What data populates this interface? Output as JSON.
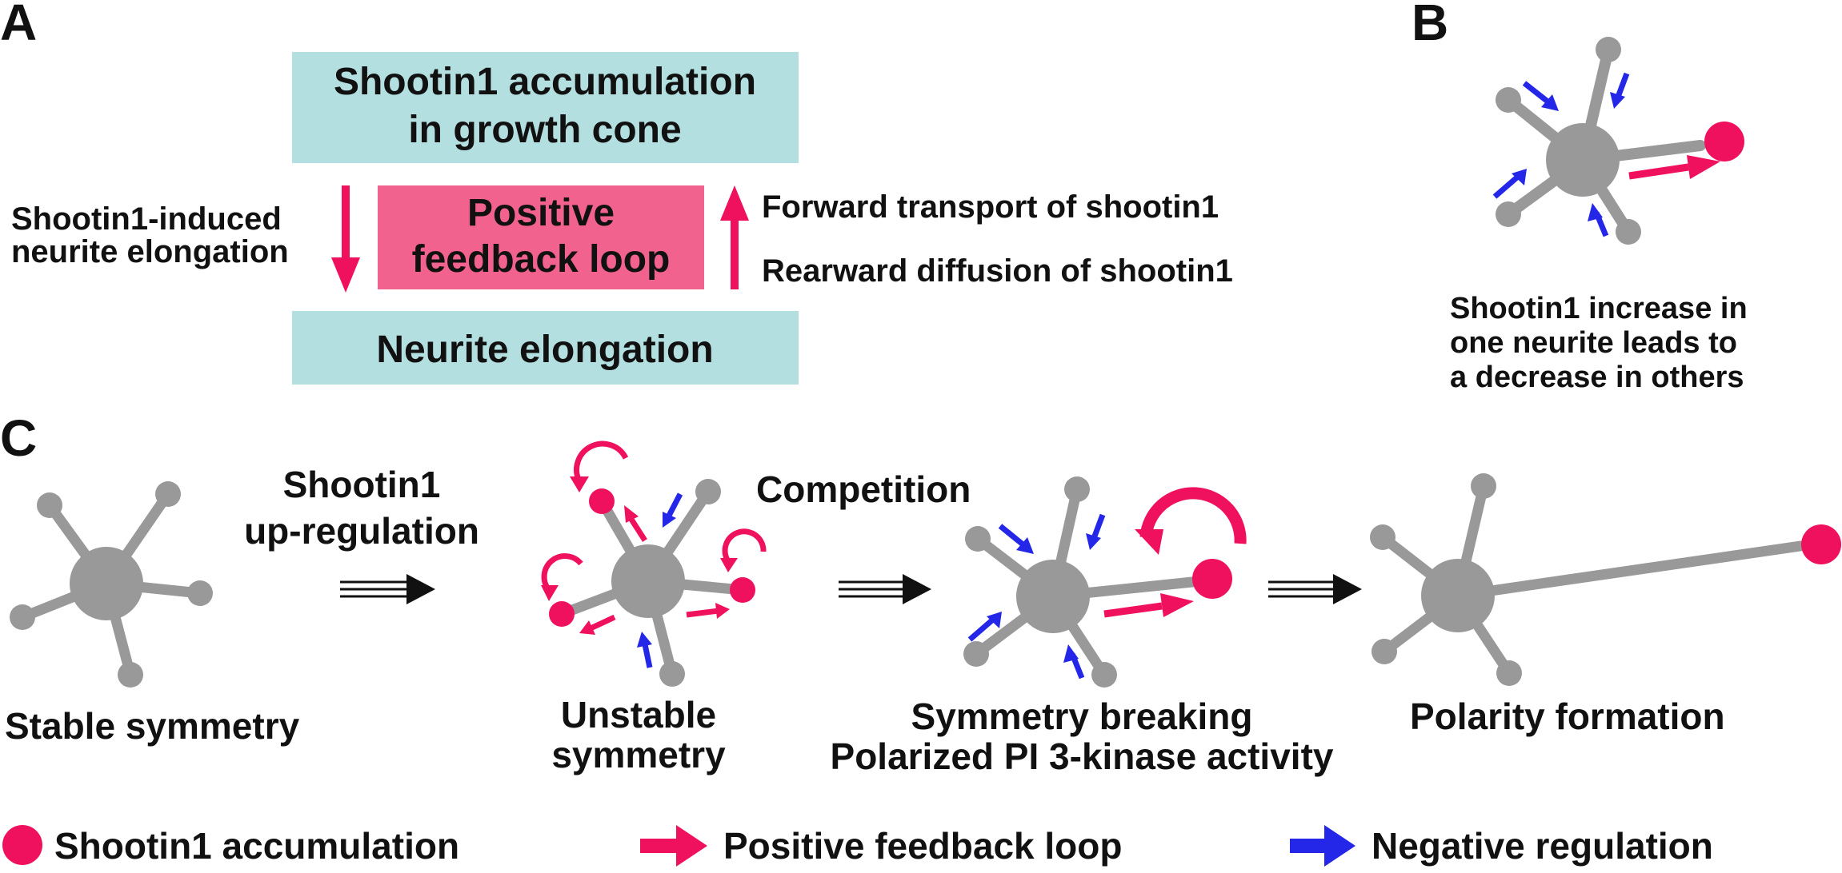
{
  "panels": {
    "a": "A",
    "b": "B",
    "c": "C"
  },
  "panel_a": {
    "top_box": [
      "Shootin1 accumulation",
      "in growth cone"
    ],
    "feedback_box": [
      "Positive",
      "feedback loop"
    ],
    "bottom_box": "Neurite elongation",
    "left_label": [
      "Shootin1-induced",
      "neurite elongation"
    ],
    "right_label_1": "Forward transport of shootin1",
    "right_label_2": "Rearward diffusion of shootin1"
  },
  "panel_b": {
    "caption": [
      "Shootin1 increase in",
      "one neurite leads to",
      "a decrease in others"
    ]
  },
  "panel_c": {
    "stage1_label": "Stable symmetry",
    "transition1_label": [
      "Shootin1",
      "up-regulation"
    ],
    "stage2_label": [
      "Unstable",
      "symmetry"
    ],
    "transition2_label": "Competition",
    "stage3_label": [
      "Symmetry breaking",
      "Polarized PI 3-kinase activity"
    ],
    "stage4_label": "Polarity formation"
  },
  "legend": {
    "accumulation": "Shootin1 accumulation",
    "positive": "Positive feedback loop",
    "negative": "Negative regulation"
  },
  "colors": {
    "pink": "#f0115e",
    "blue": "#2427e8",
    "gray": "#999999",
    "teal_box": "#b4dfe0",
    "pink_box": "#f2628e"
  }
}
